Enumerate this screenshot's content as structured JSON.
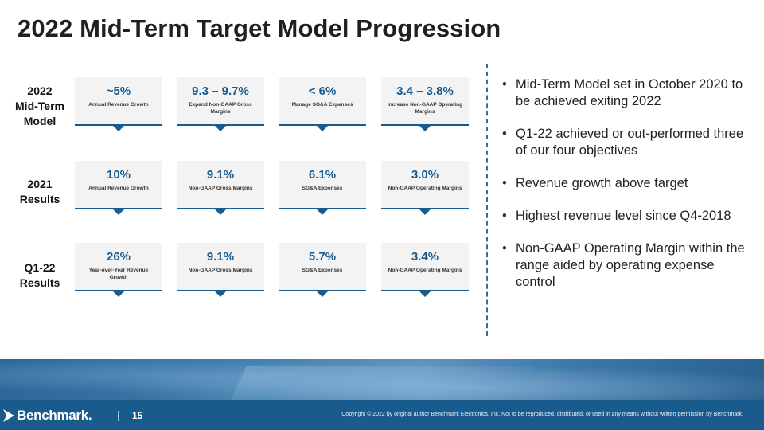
{
  "title": "2022 Mid-Term Target Model Progression",
  "rows": [
    {
      "label": [
        "2022",
        "Mid-Term",
        "Model"
      ],
      "cards": [
        {
          "value": "~5%",
          "desc": "Annual Revenue Growth"
        },
        {
          "value": "9.3 – 9.7%",
          "desc": "Expand Non-GAAP Gross Margins"
        },
        {
          "value": "< 6%",
          "desc": "Manage SG&A Expenses"
        },
        {
          "value": "3.4 – 3.8%",
          "desc": "Increase Non-GAAP Operating Margins"
        }
      ]
    },
    {
      "label": [
        "2021",
        "Results"
      ],
      "cards": [
        {
          "value": "10%",
          "desc": "Annual Revenue Growth"
        },
        {
          "value": "9.1%",
          "desc": "Non-GAAP Gross Margins"
        },
        {
          "value": "6.1%",
          "desc": "SG&A Expenses"
        },
        {
          "value": "3.0%",
          "desc": "Non-GAAP Operating Margins"
        }
      ]
    },
    {
      "label": [
        "Q1-22",
        "Results"
      ],
      "cards": [
        {
          "value": "26%",
          "desc": "Year-over-Year Revenue Growth"
        },
        {
          "value": "9.1%",
          "desc": "Non-GAAP Gross Margins"
        },
        {
          "value": "5.7%",
          "desc": "SG&A Expenses"
        },
        {
          "value": "3.4%",
          "desc": "Non-GAAP Operating Margins"
        }
      ]
    }
  ],
  "bullets": [
    "Mid-Term Model set in October 2020 to be achieved exiting 2022",
    "Q1-22 achieved or out-performed three of our four objectives",
    "Revenue growth above target",
    "Highest revenue level since Q4-2018",
    "Non-GAAP Operating Margin within the range aided by operating expense control"
  ],
  "footer": {
    "logo_text": "Benchmark",
    "logo_dot": ".",
    "separator": "|",
    "page_number": "15",
    "copyright": "Copyright © 2022 by original author Benchmark Electronics, Inc. Not to be reproduced, distributed, or used in any means without written permission by Benchmark."
  },
  "colors": {
    "accent": "#1a5b8e",
    "card_bg": "#f3f3f3"
  },
  "icons": {
    "logo_mark": "benchmark-arrow-icon",
    "card_pointer": "caret-down-icon"
  }
}
